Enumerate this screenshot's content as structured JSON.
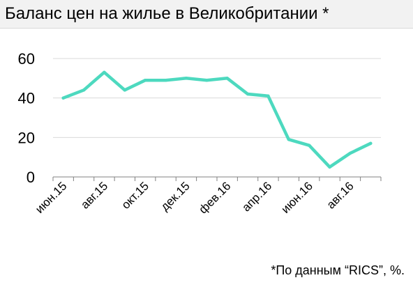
{
  "title": "Баланс цен на жилье в Великобритании *",
  "footnote": "*По данным “RICS”, %.",
  "colors": {
    "line": "#4dd9bf",
    "grid": "#d9d9d9",
    "axis": "#808080",
    "title_bg": "#f2f2f2"
  },
  "chart_data": {
    "type": "line",
    "title": "Баланс цен на жилье в Великобритании *",
    "xlabel": "",
    "ylabel": "",
    "ylim": [
      0,
      60
    ],
    "yticks": [
      0,
      20,
      40,
      60
    ],
    "grid": true,
    "legend": "none",
    "x": [
      "июн.15",
      "июл.15",
      "авг.15",
      "сен.15",
      "окт.15",
      "ноя.15",
      "дек.15",
      "янв.16",
      "фев.16",
      "мар.16",
      "апр.16",
      "май.16",
      "июн.16",
      "июл.16",
      "авг.16",
      "сен.16"
    ],
    "xtick_labels": [
      "июн.15",
      "авг.15",
      "окт.15",
      "дек.15",
      "фев.16",
      "апр.16",
      "июн.16",
      "авг.16"
    ],
    "series": [
      {
        "values": [
          40,
          44,
          53,
          44,
          49,
          49,
          50,
          49,
          50,
          42,
          41,
          19,
          16,
          5,
          12,
          17
        ]
      }
    ]
  }
}
